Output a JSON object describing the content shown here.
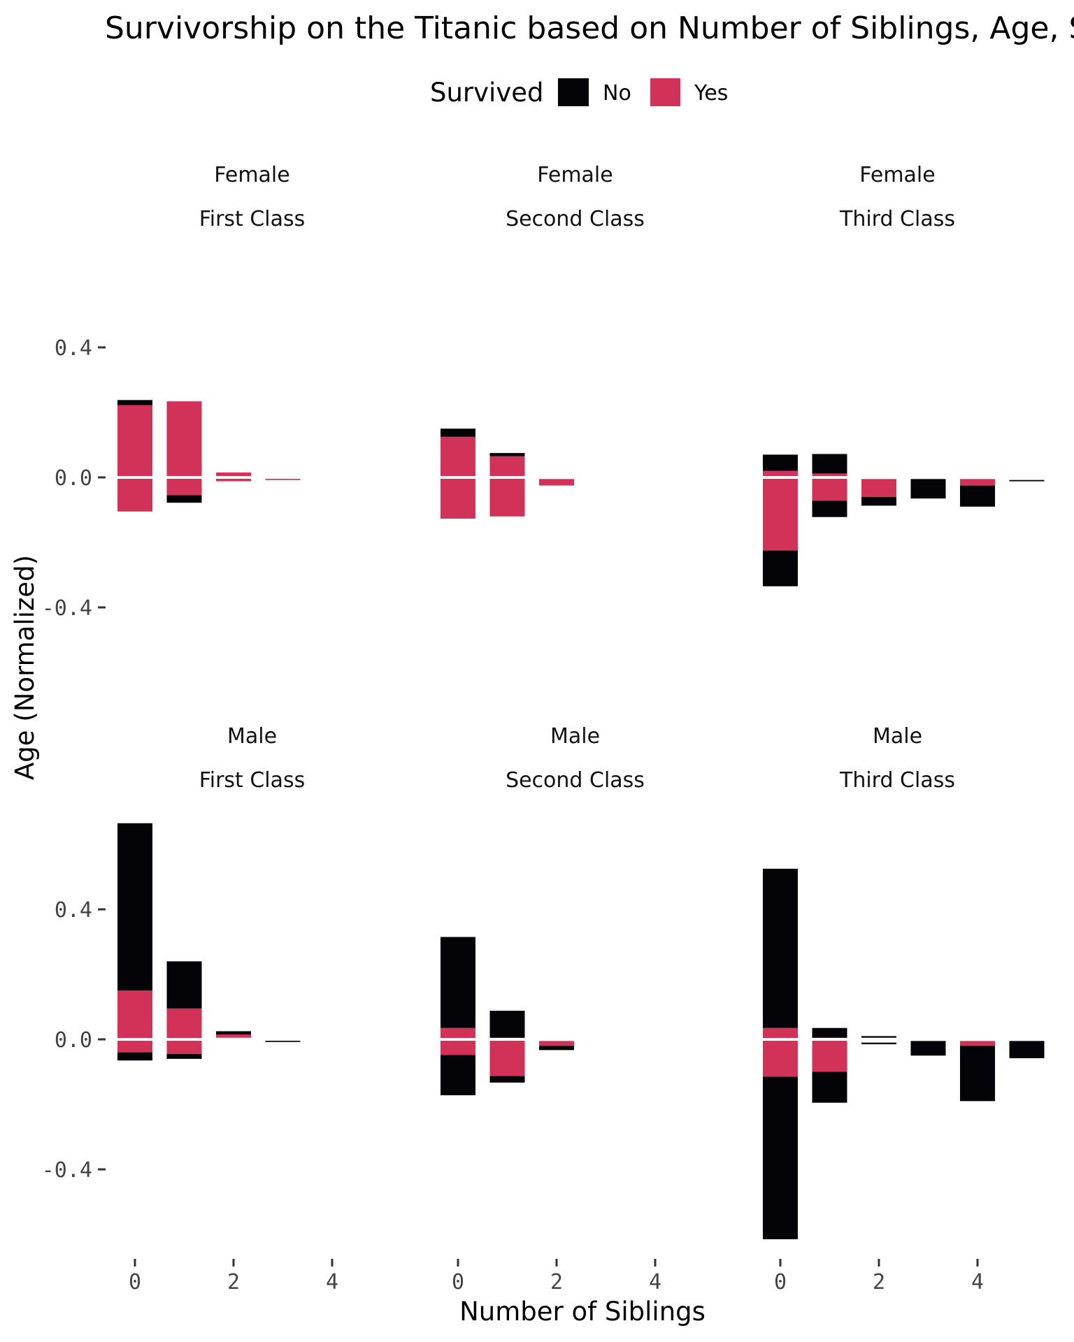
{
  "chart_data": {
    "type": "bar",
    "title": "Survivorship on the Titanic based on Number of Siblings, Age, Sex, and Class",
    "xlabel": "Number of Siblings",
    "ylabel": "Age (Normalized)",
    "x_ticks": [
      0,
      2,
      4
    ],
    "y_ticks": [
      0.4,
      0.0,
      -0.4
    ],
    "y_tick_labels": [
      "0.4",
      "0.0",
      "-0.4"
    ],
    "x_tick_labels": [
      "0",
      "2",
      "4"
    ],
    "legend": {
      "title": "Survived",
      "position": "top",
      "entries": [
        {
          "label": "No",
          "color": "#040308"
        },
        {
          "label": "Yes",
          "color": "#d33258"
        }
      ]
    },
    "colors": {
      "No": "#040308",
      "Yes": "#d33258",
      "reference_line": "#ffffff"
    },
    "panels": [
      {
        "sex": "Female",
        "class": "First Class",
        "ylim": [
          -0.4,
          0.4
        ],
        "bars": [
          {
            "x": 0,
            "yes": [
              -0.105,
              0.222
            ],
            "no": [
              0.222,
              0.238
            ]
          },
          {
            "x": 1,
            "yes": [
              -0.055,
              0.234
            ],
            "no": [
              -0.078,
              -0.055
            ]
          },
          {
            "x": 2,
            "yes": [
              -0.012,
              0.015
            ],
            "no": null
          },
          {
            "x": 3,
            "yes": [
              -0.008,
              -0.004
            ],
            "no": null
          }
        ]
      },
      {
        "sex": "Female",
        "class": "Second Class",
        "ylim": [
          -0.4,
          0.4
        ],
        "bars": [
          {
            "x": 0,
            "yes": [
              -0.127,
              0.125
            ],
            "no": [
              0.125,
              0.15
            ]
          },
          {
            "x": 1,
            "yes": [
              -0.12,
              0.065
            ],
            "no": [
              0.065,
              0.075
            ]
          },
          {
            "x": 2,
            "yes": [
              -0.025,
              -0.005
            ],
            "no": null
          }
        ]
      },
      {
        "sex": "Female",
        "class": "Third Class",
        "ylim": [
          -0.4,
          0.4
        ],
        "bars": [
          {
            "x": 0,
            "yes": [
              -0.225,
              0.02
            ],
            "no": [
              0.02,
              0.07
            ]
          },
          {
            "x": 0,
            "yes": null,
            "no": [
              -0.335,
              -0.225
            ]
          },
          {
            "x": 1,
            "yes": [
              -0.072,
              0.012
            ],
            "no": [
              0.012,
              0.072
            ]
          },
          {
            "x": 1,
            "yes": null,
            "no": [
              -0.122,
              -0.072
            ]
          },
          {
            "x": 2,
            "yes": [
              -0.06,
              -0.005
            ],
            "no": [
              -0.087,
              -0.06
            ]
          },
          {
            "x": 3,
            "yes": null,
            "no": [
              -0.065,
              -0.005
            ]
          },
          {
            "x": 4,
            "yes": [
              -0.025,
              -0.005
            ],
            "no": [
              -0.09,
              -0.025
            ]
          },
          {
            "x": 5,
            "yes": null,
            "no": [
              -0.012,
              -0.008
            ]
          }
        ]
      },
      {
        "sex": "Male",
        "class": "First Class",
        "ylim": [
          -0.6,
          0.6
        ],
        "bars": [
          {
            "x": 0,
            "yes": [
              -0.04,
              0.15
            ],
            "no": [
              0.15,
              0.665
            ]
          },
          {
            "x": 0,
            "yes": null,
            "no": [
              -0.065,
              -0.04
            ]
          },
          {
            "x": 1,
            "yes": [
              -0.045,
              0.095
            ],
            "no": [
              0.095,
              0.24
            ]
          },
          {
            "x": 1,
            "yes": null,
            "no": [
              -0.06,
              -0.045
            ]
          },
          {
            "x": 2,
            "yes": [
              0.005,
              0.015
            ],
            "no": [
              0.015,
              0.025
            ]
          },
          {
            "x": 3,
            "yes": null,
            "no": [
              -0.008,
              -0.004
            ]
          }
        ]
      },
      {
        "sex": "Male",
        "class": "Second Class",
        "ylim": [
          -0.6,
          0.6
        ],
        "bars": [
          {
            "x": 0,
            "yes": [
              -0.048,
              0.035
            ],
            "no": [
              0.035,
              0.315
            ]
          },
          {
            "x": 0,
            "yes": null,
            "no": [
              -0.172,
              -0.048
            ]
          },
          {
            "x": 1,
            "yes": [
              -0.113,
              0.005
            ],
            "no": [
              0.005,
              0.088
            ]
          },
          {
            "x": 1,
            "yes": null,
            "no": [
              -0.133,
              -0.113
            ]
          },
          {
            "x": 2,
            "yes": [
              -0.02,
              -0.005
            ],
            "no": [
              -0.033,
              -0.02
            ]
          }
        ]
      },
      {
        "sex": "Male",
        "class": "Third Class",
        "ylim": [
          -0.6,
          0.6
        ],
        "bars": [
          {
            "x": 0,
            "yes": [
              -0.115,
              0.035
            ],
            "no": [
              0.035,
              0.525
            ]
          },
          {
            "x": 0,
            "yes": null,
            "no": [
              -0.615,
              -0.115
            ]
          },
          {
            "x": 1,
            "yes": [
              -0.1,
              0.005
            ],
            "no": [
              0.005,
              0.035
            ]
          },
          {
            "x": 1,
            "yes": null,
            "no": [
              -0.195,
              -0.1
            ]
          },
          {
            "x": 2,
            "yes": null,
            "no": [
              0.005,
              0.01
            ]
          },
          {
            "x": 2,
            "yes": null,
            "no": [
              -0.015,
              -0.01
            ]
          },
          {
            "x": 3,
            "yes": null,
            "no": [
              -0.05,
              -0.005
            ]
          },
          {
            "x": 4,
            "yes": [
              -0.02,
              -0.005
            ],
            "no": [
              -0.19,
              -0.02
            ]
          },
          {
            "x": 5,
            "yes": null,
            "no": [
              -0.058,
              -0.005
            ]
          }
        ]
      }
    ]
  }
}
